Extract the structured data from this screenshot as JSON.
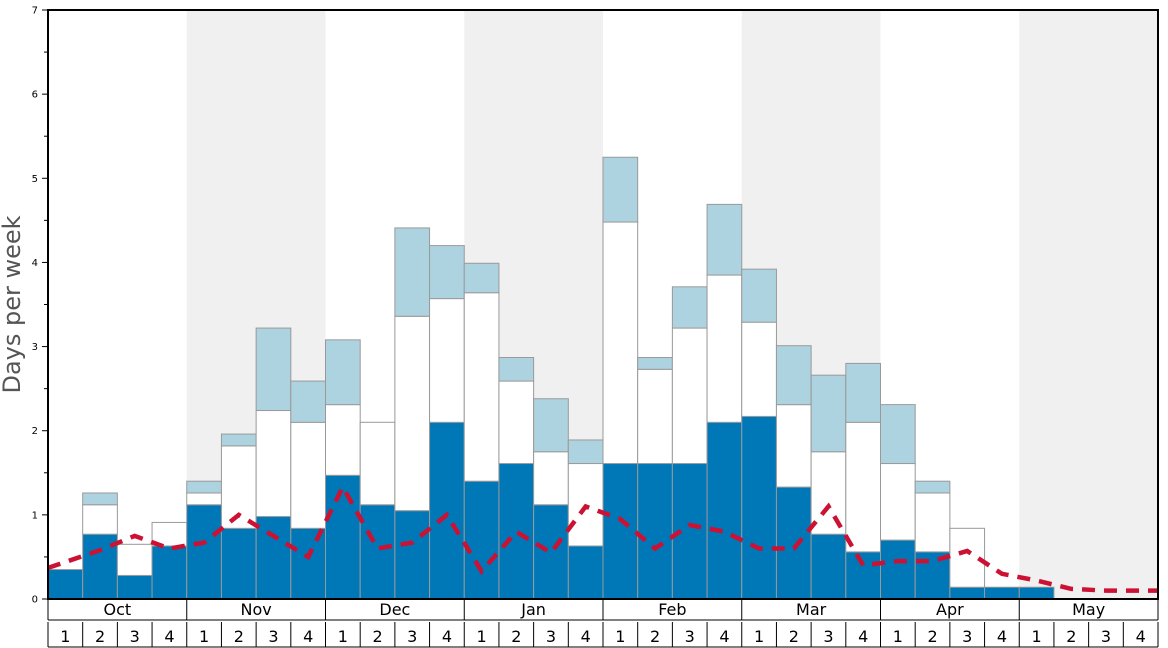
{
  "chart_data": {
    "type": "bar",
    "stacked": true,
    "xlabel": "",
    "ylabel": "Days per week",
    "ylim": [
      0,
      7
    ],
    "yticks": [
      "0",
      "1",
      "2",
      "3",
      "4",
      "5",
      "6",
      "7"
    ],
    "months": [
      "Oct",
      "Nov",
      "Dec",
      "Jan",
      "Feb",
      "Mar",
      "Apr",
      "May"
    ],
    "weeks": [
      "1",
      "2",
      "3",
      "4"
    ],
    "colors": {
      "dark": "#0077b6",
      "white": "#ffffff",
      "light": "#aed3e0",
      "line": "#cc1133",
      "shade": "#f0f0f0",
      "bar_border": "#999999"
    },
    "series": [
      {
        "key": "dark",
        "values": [
          0.35,
          0.77,
          0.28,
          0.63,
          1.12,
          0.84,
          0.98,
          0.84,
          1.47,
          1.12,
          1.05,
          2.1,
          1.4,
          1.61,
          1.12,
          0.63,
          1.61,
          1.61,
          1.61,
          2.1,
          2.17,
          1.33,
          0.77,
          0.56,
          0.7,
          0.56,
          0.14,
          0.14,
          0.14,
          0,
          0,
          0
        ]
      },
      {
        "key": "white",
        "values": [
          0,
          0.35,
          0.37,
          0.28,
          0.14,
          0.98,
          1.26,
          1.26,
          0.84,
          0.98,
          2.31,
          1.47,
          2.24,
          0.98,
          0.63,
          0.98,
          2.87,
          1.12,
          1.61,
          1.75,
          1.12,
          0.98,
          0.98,
          1.54,
          0.91,
          0.7,
          0.7,
          0,
          0,
          0,
          0,
          0
        ]
      },
      {
        "key": "light",
        "values": [
          0,
          0.14,
          0,
          0,
          0.14,
          0.14,
          0.98,
          0.49,
          0.77,
          0,
          1.05,
          0.63,
          0.35,
          0.28,
          0.63,
          0.28,
          0.77,
          0.14,
          0.49,
          0.84,
          0.63,
          0.7,
          0.91,
          0.7,
          0.7,
          0.14,
          0,
          0,
          0,
          0,
          0,
          0
        ]
      }
    ],
    "line": {
      "style": "dashed",
      "values": [
        0.37,
        0.58,
        0.75,
        0.6,
        0.67,
        1.0,
        0.75,
        0.5,
        1.33,
        0.6,
        0.67,
        1.0,
        0.33,
        0.8,
        0.55,
        1.1,
        0.95,
        0.6,
        0.88,
        0.8,
        0.6,
        0.6,
        1.1,
        0.4,
        0.45,
        0.45,
        0.57,
        0.3,
        0.22,
        0.12,
        0.1,
        0.1
      ]
    }
  }
}
